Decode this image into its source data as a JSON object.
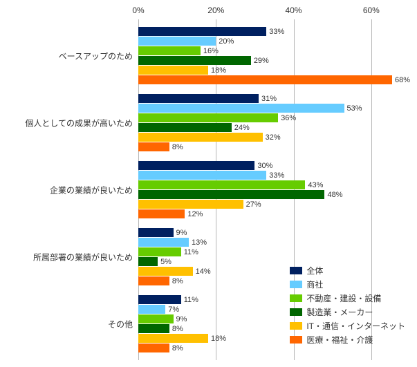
{
  "chart": {
    "type": "grouped-horizontal-bar",
    "background_color": "#ffffff",
    "grid_color": "#b6b6b6",
    "text_color": "#333333",
    "font_size_axis": 12,
    "font_size_category": 12,
    "font_size_value": 11,
    "x_axis": {
      "min": 0,
      "max": 70,
      "ticks": [
        0,
        20,
        40,
        60
      ],
      "tick_labels": [
        "0%",
        "20%",
        "40%",
        "60%"
      ]
    },
    "series": [
      {
        "name": "全体",
        "color": "#002060"
      },
      {
        "name": "商社",
        "color": "#66ccff"
      },
      {
        "name": "不動産・建設・設備",
        "color": "#66cc00"
      },
      {
        "name": "製造業・メーカー",
        "color": "#006600"
      },
      {
        "name": "IT・通信・インターネット",
        "color": "#ffc000"
      },
      {
        "name": "医療・福祉・介護",
        "color": "#ff6600"
      }
    ],
    "categories": [
      {
        "label": "ベースアップのため",
        "values": [
          33,
          20,
          16,
          29,
          18,
          68
        ],
        "value_labels": [
          "33%",
          "20%",
          "16%",
          "29%",
          "18%",
          "68%"
        ]
      },
      {
        "label": "個人としての成果が高いため",
        "values": [
          31,
          53,
          36,
          24,
          32,
          8
        ],
        "value_labels": [
          "31%",
          "53%",
          "36%",
          "24%",
          "32%",
          "8%"
        ]
      },
      {
        "label": "企業の業績が良いため",
        "values": [
          30,
          33,
          43,
          48,
          27,
          12
        ],
        "value_labels": [
          "30%",
          "33%",
          "43%",
          "48%",
          "27%",
          "12%"
        ]
      },
      {
        "label": "所属部署の業績が良いため",
        "values": [
          9,
          13,
          11,
          5,
          14,
          8
        ],
        "value_labels": [
          "9%",
          "13%",
          "11%",
          "5%",
          "14%",
          "8%"
        ]
      },
      {
        "label": "その他",
        "values": [
          11,
          7,
          9,
          8,
          18,
          8
        ],
        "value_labels": [
          "11%",
          "7%",
          "9%",
          "8%",
          "18%",
          "8%"
        ]
      }
    ]
  }
}
